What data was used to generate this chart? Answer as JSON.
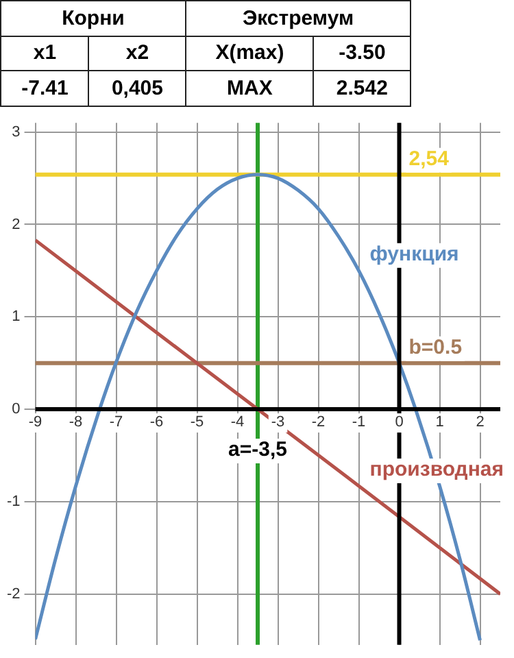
{
  "chart_data": {
    "type": "line",
    "annotations": [
      "Корни",
      "Экстремум",
      "x1",
      "x2",
      "X(max)",
      "-3.50",
      "-7.41",
      "0,405",
      "MAX",
      "2.542"
    ],
    "series": [
      {
        "name": "функция",
        "color": "#5b8bc0",
        "x": [
          -9,
          -8.5,
          -8,
          -7.41,
          -7,
          -6.5,
          -6,
          -5.5,
          -5,
          -4.5,
          -4,
          -3.5,
          -3,
          -2.5,
          -2,
          -1.5,
          -1,
          -0.5,
          0,
          0.405,
          1,
          1.5,
          2
        ],
        "values": [
          -2.49,
          -1.62,
          -0.83,
          0,
          0.51,
          1.05,
          1.5,
          1.88,
          2.17,
          2.38,
          2.5,
          2.54,
          2.5,
          2.37,
          2.17,
          1.87,
          1.5,
          1.04,
          0.5,
          0,
          -0.83,
          -1.62,
          -2.5
        ]
      },
      {
        "name": "производная",
        "color": "#b5524a",
        "x": [
          -9,
          -6,
          -3.5,
          -1,
          2.5
        ],
        "values": [
          1.83,
          0.83,
          0,
          -0.83,
          -2.0
        ]
      }
    ],
    "xlim": [
      -9,
      2.5
    ],
    "xticks": [
      -9,
      -8,
      -7,
      -6,
      -5,
      -4,
      -3,
      -2,
      -1,
      0,
      1,
      2
    ],
    "ylim": [
      -2.55,
      3.1
    ],
    "yticks": [
      -2,
      -1,
      0,
      1,
      2,
      3
    ],
    "ref_lines": [
      {
        "axis": "x",
        "value": -3.5,
        "label": "a=-3,5",
        "color": "#2ca02c"
      },
      {
        "axis": "y",
        "value": 2.54,
        "label": "2,54",
        "color": "#f0d030"
      },
      {
        "axis": "y",
        "value": 0.5,
        "label": "b=0.5",
        "color": "#a67c5b"
      }
    ],
    "grid": true,
    "legend": false,
    "marker": "none",
    "line_style": "solid"
  }
}
